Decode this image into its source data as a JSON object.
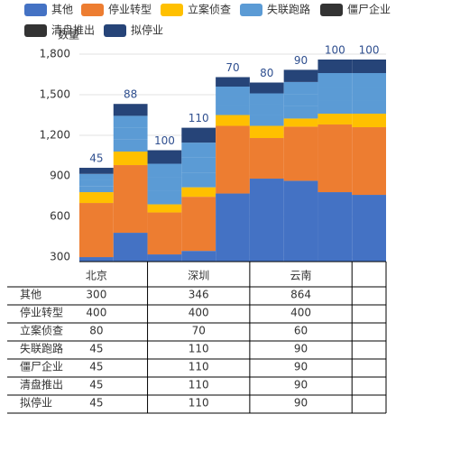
{
  "chart_data": {
    "type": "bar",
    "y_axis_label": "数量",
    "categories": [
      "北京",
      null,
      null,
      "深圳",
      null,
      null,
      "云南",
      null,
      null
    ],
    "series": [
      {
        "name": "其他",
        "color": "#4472c4",
        "legend_color": "#4472c4",
        "values": [
          300,
          480,
          320,
          346,
          770,
          880,
          864,
          780,
          760
        ]
      },
      {
        "name": "停业转型",
        "color": "#ed7d31",
        "legend_color": "#ed7d31",
        "values": [
          400,
          500,
          310,
          400,
          500,
          300,
          400,
          500,
          500
        ]
      },
      {
        "name": "立案侦查",
        "color": "#ffc000",
        "legend_color": "#ffc000",
        "values": [
          80,
          100,
          60,
          70,
          80,
          90,
          60,
          80,
          100
        ]
      },
      {
        "name": "失联跑路",
        "color": "#5b9bd5",
        "legend_color": "#5b9bd5",
        "values": [
          45,
          88,
          100,
          110,
          70,
          80,
          90,
          100,
          100
        ]
      },
      {
        "name": "僵尸企业",
        "color": "#5b9bd5",
        "legend_color": "#333333",
        "values": [
          45,
          88,
          100,
          110,
          70,
          80,
          90,
          100,
          100
        ]
      },
      {
        "name": "清盘推出",
        "color": "#5b9bd5",
        "legend_color": "#333333",
        "values": [
          45,
          88,
          100,
          110,
          70,
          80,
          90,
          100,
          100
        ]
      },
      {
        "name": "拟停业",
        "color": "#264478",
        "legend_color": "#264478",
        "values": [
          45,
          88,
          100,
          110,
          70,
          80,
          90,
          100,
          100
        ]
      }
    ],
    "ylim": [
      267,
      1800
    ],
    "yticks": [
      300,
      600,
      900,
      {
        "value": 1200,
        "label": "1,200"
      },
      {
        "value": 1500,
        "label": "1,500"
      },
      {
        "value": 1800,
        "label": "1,800"
      }
    ],
    "grid": true
  }
}
